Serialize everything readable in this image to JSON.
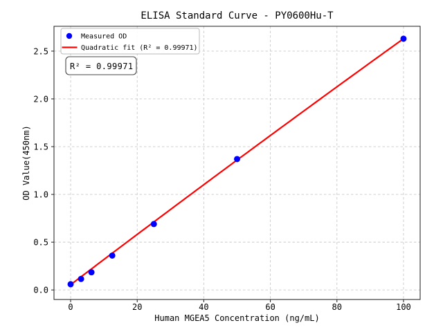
{
  "chart_data": {
    "type": "scatter",
    "title": "ELISA Standard Curve - PY0600Hu-T",
    "xlabel": "Human MGEA5 Concentration (ng/mL)",
    "ylabel": "OD Value(450nm)",
    "xlim": [
      -5,
      105
    ],
    "ylim": [
      -0.1,
      2.76
    ],
    "xticks": [
      {
        "value": 0,
        "label": "0"
      },
      {
        "value": 20,
        "label": "20"
      },
      {
        "value": 40,
        "label": "40"
      },
      {
        "value": 60,
        "label": "60"
      },
      {
        "value": 80,
        "label": "80"
      },
      {
        "value": 100,
        "label": "100"
      }
    ],
    "yticks": [
      {
        "value": 0.0,
        "label": "0.0"
      },
      {
        "value": 0.5,
        "label": "0.5"
      },
      {
        "value": 1.0,
        "label": "1.0"
      },
      {
        "value": 1.5,
        "label": "1.5"
      },
      {
        "value": 2.0,
        "label": "2.0"
      },
      {
        "value": 2.5,
        "label": "2.5"
      }
    ],
    "grid": true,
    "legend": {
      "position": "upper left",
      "items": [
        {
          "label": "Measured OD",
          "marker": "circle",
          "color": "#0000ff"
        },
        {
          "label": "Quadratic fit (R² = 0.99971)",
          "marker": "line",
          "color": "#ff0000"
        }
      ]
    },
    "annotation": {
      "text": "R² = 0.99971"
    },
    "series": [
      {
        "name": "Measured OD",
        "type": "scatter",
        "color": "#0000ff",
        "x": [
          0,
          3.125,
          6.25,
          12.5,
          25,
          50,
          100
        ],
        "y": [
          0.06,
          0.115,
          0.185,
          0.36,
          0.69,
          1.37,
          2.63
        ]
      },
      {
        "name": "Quadratic fit",
        "type": "line",
        "color": "#ff0000",
        "fit": {
          "kind": "quadratic",
          "coefficients": {
            "a": -7e-06,
            "b": 0.02645,
            "c": 0.055
          },
          "r_squared": 0.99971,
          "x_range": [
            0,
            100
          ]
        }
      }
    ],
    "palette": {
      "grid_color": "#c9c9c9",
      "spine_color": "#1a1a1a",
      "tick_color": "#1a1a1a",
      "legend_border": "#b8b8b8",
      "annotation_border": "#444444",
      "background": "#ffffff"
    }
  }
}
